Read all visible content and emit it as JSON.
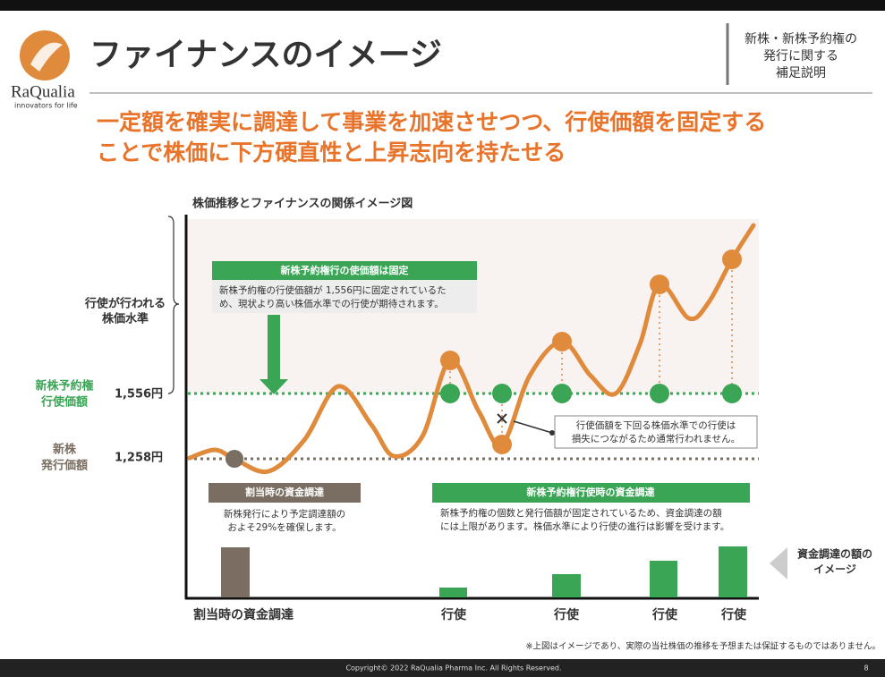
{
  "header": {
    "logo_name": "RaQualia",
    "logo_tagline": "innovators for life",
    "title": "ファイナンスのイメージ",
    "side_note": [
      "新株・新株予約権の",
      "発行に関する",
      "補足説明"
    ]
  },
  "lead": [
    "一定額を確実に調達して事業を加速させつつ、行使価額を固定する",
    "ことで株価に下方硬直性と上昇志向を持たせる"
  ],
  "figure": {
    "title": "株価推移とファイナンスの関係イメージ図",
    "exercise_level": [
      "行使が行われる",
      "株価水準"
    ],
    "warrant_price_label": [
      "新株予約権",
      "行使価額"
    ],
    "warrant_price": "1,556円",
    "share_price_label": [
      "新株",
      "発行価額"
    ],
    "share_price": "1,258円",
    "fixed_box": {
      "title": "新株予約権行の使価額は固定",
      "body": [
        "新株予約権の行使価額が 1,556円に固定されているた",
        "め、現状より高い株価水準での行使が期待されます。"
      ]
    },
    "callout": [
      "行使価額を下回る株価水準での行使は",
      "損失につながるため通常行われません。"
    ],
    "allotment_box": {
      "title": "割当時の資金調達",
      "body": [
        "新株発行により予定調達額の",
        "およそ29%を確保します。"
      ]
    },
    "exercise_box": {
      "title": "新株予約権行使時の資金調達",
      "body": [
        "新株予約権の個数と発行価額が固定されているため、資金調達の額",
        "には上限があります。株価水準により行使の進行は影響を受けます。"
      ]
    },
    "x_labels": [
      "割当時の資金調達",
      "行使",
      "行使",
      "行使",
      "行使"
    ],
    "side_label": [
      "資金調達の額の",
      "イメージ"
    ]
  },
  "footnote": "※上図はイメージであり、実際の当社株価の推移を予想または保証するものではありません。",
  "footer": {
    "copyright": "Copyright© 2022  RaQualia Pharma Inc.  All Rights Reserved.",
    "page": "8"
  }
}
